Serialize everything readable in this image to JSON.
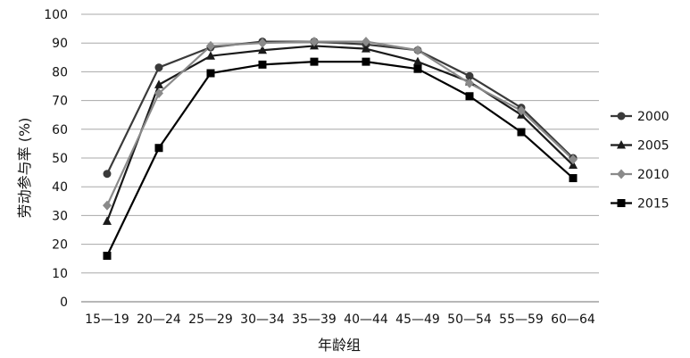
{
  "chart_data": {
    "type": "line",
    "xlabel": "年龄组",
    "ylabel": "劳动参与率 (%)",
    "ylim": [
      0,
      100
    ],
    "yticks": [
      0,
      10,
      20,
      30,
      40,
      50,
      60,
      70,
      80,
      90,
      100
    ],
    "grid": true,
    "legend_position": "right",
    "categories": [
      "15—19",
      "20—24",
      "25—29",
      "30—34",
      "35—39",
      "40—44",
      "45—49",
      "50—54",
      "55—59",
      "60—64"
    ],
    "series": [
      {
        "name": "2000",
        "marker": "circle",
        "color": "#3a3a3a",
        "values": [
          44.5,
          81.5,
          88.5,
          90.5,
          90.5,
          89.5,
          87.5,
          78.5,
          67.5,
          50.0
        ]
      },
      {
        "name": "2005",
        "marker": "triangle",
        "color": "#1a1a1a",
        "values": [
          28.0,
          75.5,
          85.5,
          87.5,
          89.0,
          88.0,
          83.5,
          76.5,
          65.0,
          47.5
        ]
      },
      {
        "name": "2010",
        "marker": "diamond",
        "color": "#8a8a8a",
        "values": [
          33.5,
          72.5,
          89.0,
          90.0,
          90.5,
          90.5,
          87.5,
          76.0,
          66.5,
          49.5
        ]
      },
      {
        "name": "2015",
        "marker": "square",
        "color": "#000000",
        "values": [
          16.0,
          53.5,
          79.5,
          82.5,
          83.5,
          83.5,
          81.0,
          71.5,
          59.0,
          43.0
        ]
      }
    ]
  }
}
